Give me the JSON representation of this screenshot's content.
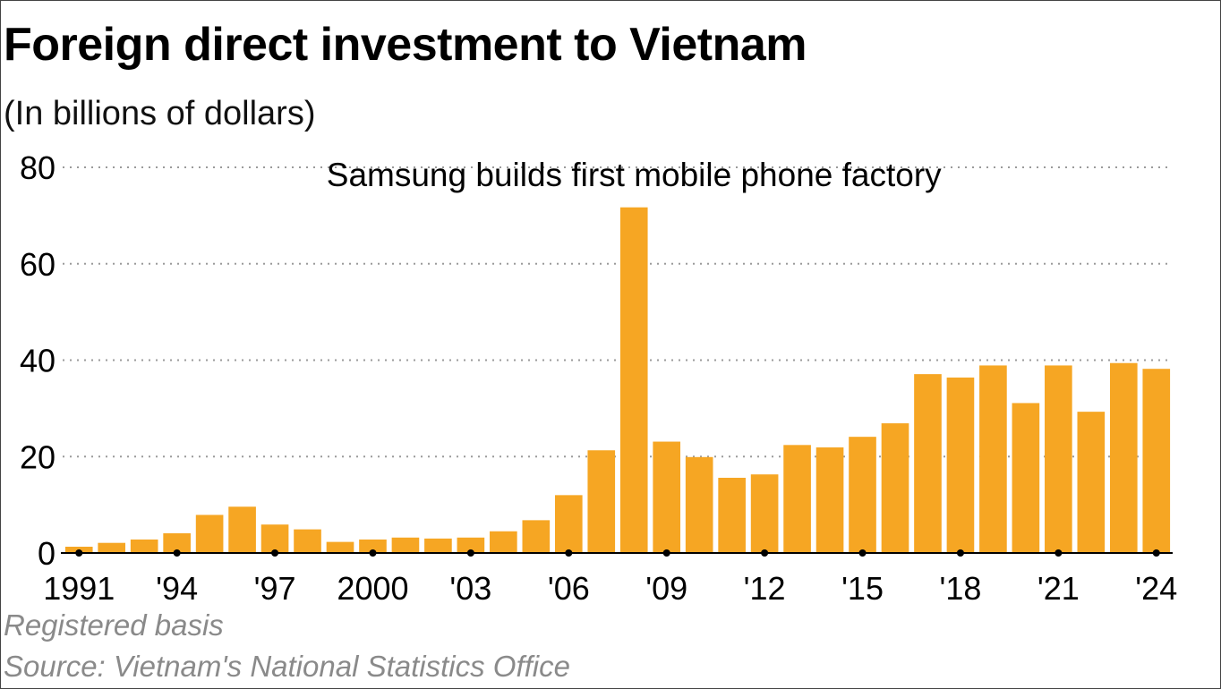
{
  "chart_data": {
    "type": "bar",
    "title": "Foreign direct investment to Vietnam",
    "subtitle": "(In billions of dollars)",
    "xlabel": "",
    "ylabel": "",
    "ylim": [
      0,
      80
    ],
    "y_ticks": [
      0,
      20,
      40,
      60,
      80
    ],
    "grid": "horizontal dotted",
    "categories": [
      1991,
      1992,
      1993,
      1994,
      1995,
      1996,
      1997,
      1998,
      1999,
      2000,
      2001,
      2002,
      2003,
      2004,
      2005,
      2006,
      2007,
      2008,
      2009,
      2010,
      2011,
      2012,
      2013,
      2014,
      2015,
      2016,
      2017,
      2018,
      2019,
      2020,
      2021,
      2022,
      2023,
      2024
    ],
    "x_tick_labels": [
      {
        "year": 1991,
        "label": "1991"
      },
      {
        "year": 1994,
        "label": "'94"
      },
      {
        "year": 1997,
        "label": "'97"
      },
      {
        "year": 2000,
        "label": "2000"
      },
      {
        "year": 2003,
        "label": "'03"
      },
      {
        "year": 2006,
        "label": "'06"
      },
      {
        "year": 2009,
        "label": "'09"
      },
      {
        "year": 2012,
        "label": "'12"
      },
      {
        "year": 2015,
        "label": "'15"
      },
      {
        "year": 2018,
        "label": "'18"
      },
      {
        "year": 2021,
        "label": "'21"
      },
      {
        "year": 2024,
        "label": "'24"
      }
    ],
    "values": [
      1.3,
      2.1,
      2.8,
      4.1,
      7.9,
      9.6,
      5.9,
      4.9,
      2.3,
      2.8,
      3.2,
      3.0,
      3.2,
      4.5,
      6.8,
      12.0,
      21.3,
      71.7,
      23.1,
      19.9,
      15.6,
      16.3,
      22.4,
      21.9,
      24.1,
      26.9,
      37.1,
      36.4,
      38.9,
      31.1,
      38.9,
      29.3,
      39.4,
      38.2
    ],
    "bar_color": "#f6a623",
    "annotations": [
      {
        "text": "Samsung builds first mobile phone factory",
        "year": 2008
      }
    ]
  },
  "footnotes": {
    "basis": "Registered basis",
    "source": "Source: Vietnam's National Statistics Office"
  }
}
